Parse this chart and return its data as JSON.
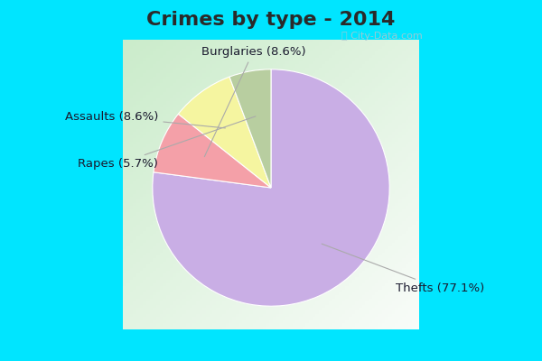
{
  "title": "Crimes by type - 2014",
  "slices": [
    {
      "label": "Thefts (77.1%)",
      "value": 77.1,
      "color": "#c9aee5"
    },
    {
      "label": "Burglaries (8.6%)",
      "value": 8.6,
      "color": "#f4a0a8"
    },
    {
      "label": "Assaults (8.6%)",
      "value": 8.6,
      "color": "#f5f5a0"
    },
    {
      "label": "Rapes (5.7%)",
      "value": 5.7,
      "color": "#b8ceA0"
    }
  ],
  "bg_top_color": "#00e5ff",
  "bg_main_tl": "#c5e8c5",
  "bg_main_br": "#e8f5e8",
  "title_fontsize": 16,
  "label_fontsize": 9.5,
  "watermark": "ⓘ City-Data.com",
  "startangle": 90,
  "title_color": "#2a2a2a",
  "label_color": "#1a1a2e"
}
